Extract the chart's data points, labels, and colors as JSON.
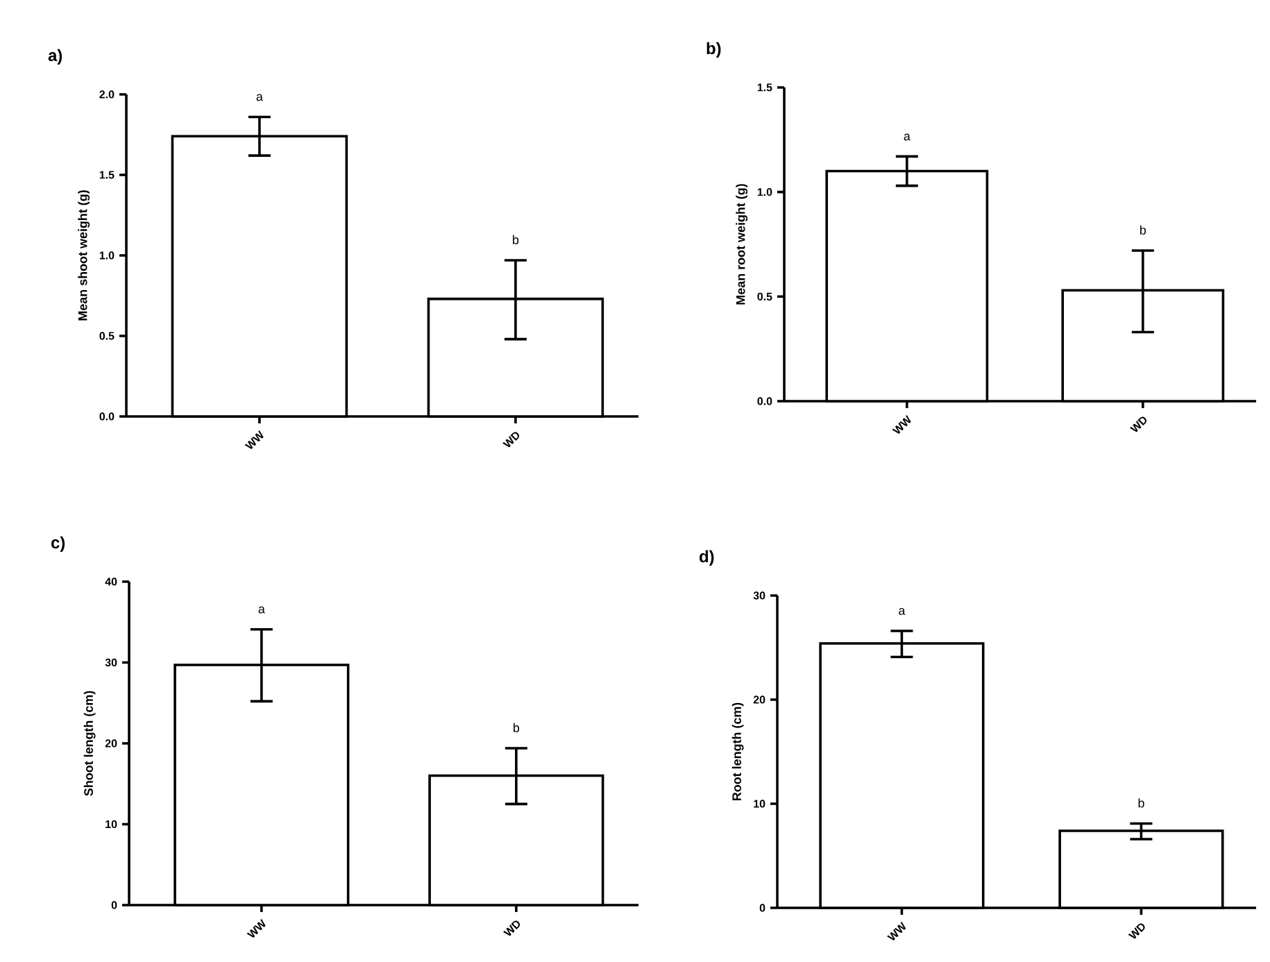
{
  "chart_data": [
    {
      "type": "bar",
      "title": "a)",
      "ylabel": "Mean shoot weight (g)",
      "categories": [
        "WW",
        "WD"
      ],
      "values": [
        1.74,
        0.73
      ],
      "errors": [
        [
          1.62,
          1.86
        ],
        [
          0.48,
          0.97
        ]
      ],
      "color": "#ffffff",
      "ylim": [
        0,
        2.0
      ],
      "yticks": [
        {
          "value": 0,
          "label": "0.0"
        },
        0.5,
        {
          "value": 1,
          "label": "1.0"
        },
        1.5,
        {
          "value": 2,
          "label": "2.0"
        }
      ],
      "annotations": [
        "a",
        "b"
      ]
    },
    {
      "type": "bar",
      "title": "b)",
      "ylabel": "Mean root weight (g)",
      "categories": [
        "WW",
        "WD"
      ],
      "values": [
        1.1,
        0.53
      ],
      "errors": [
        [
          1.03,
          1.17
        ],
        [
          0.33,
          0.72
        ]
      ],
      "color": "#ffffff",
      "ylim": [
        0,
        1.5
      ],
      "yticks": [
        {
          "value": 0,
          "label": "0.0"
        },
        0.5,
        {
          "value": 1,
          "label": "1.0"
        },
        1.5
      ],
      "annotations": [
        "a",
        "b"
      ]
    },
    {
      "type": "bar",
      "title": "c)",
      "ylabel": "Shoot length (cm)",
      "categories": [
        "WW",
        "WD"
      ],
      "values": [
        29.7,
        16.0
      ],
      "errors": [
        [
          25.2,
          34.1
        ],
        [
          12.5,
          19.4
        ]
      ],
      "color": "#ffffff",
      "ylim": [
        0,
        40
      ],
      "yticks": [
        0,
        10,
        20,
        30,
        40
      ],
      "annotations": [
        "a",
        "b"
      ]
    },
    {
      "type": "bar",
      "title": "d)",
      "ylabel": "Root length (cm)",
      "categories": [
        "WW",
        "WD"
      ],
      "values": [
        25.4,
        7.4
      ],
      "errors": [
        [
          24.1,
          26.6
        ],
        [
          6.6,
          8.1
        ]
      ],
      "color": "#ffffff",
      "ylim": [
        0,
        30
      ],
      "yticks": [
        0,
        10,
        20,
        30
      ],
      "annotations": [
        "a",
        "b"
      ]
    }
  ]
}
